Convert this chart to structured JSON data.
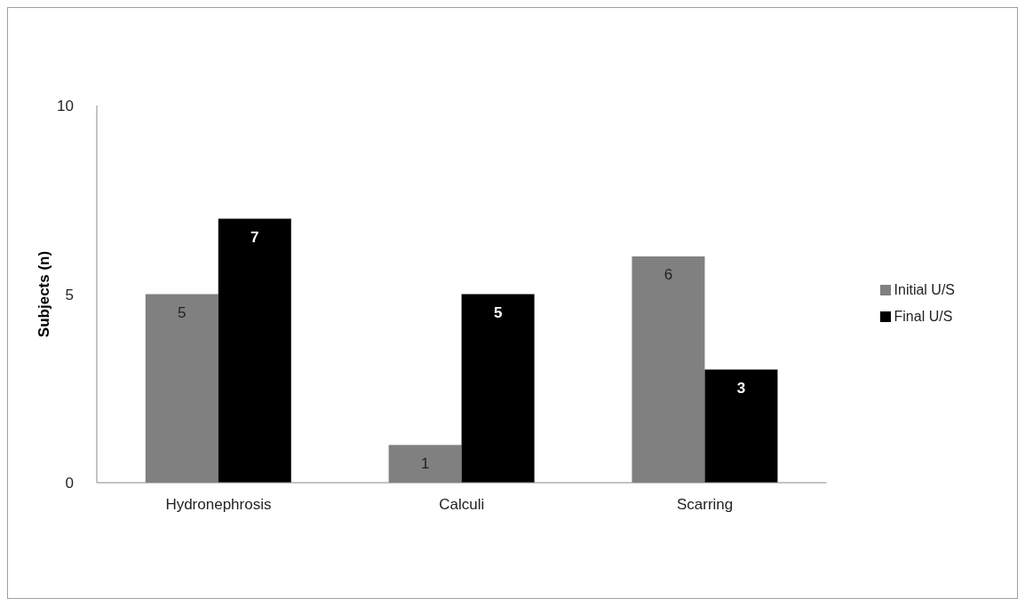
{
  "chart_data": {
    "type": "bar",
    "ylabel": "Subjects (n)",
    "categories": [
      "Hydronephrosis",
      "Calculi",
      "Scarring"
    ],
    "series": [
      {
        "name": "Initial U/S",
        "color": "#808080",
        "values": [
          5,
          1,
          6
        ]
      },
      {
        "name": "Final U/S",
        "color": "#000000",
        "values": [
          7,
          5,
          3
        ]
      }
    ],
    "ylim": [
      0,
      10
    ],
    "yticks": [
      0,
      5,
      10
    ],
    "grid": false,
    "legend": "right",
    "data_labels": true
  }
}
